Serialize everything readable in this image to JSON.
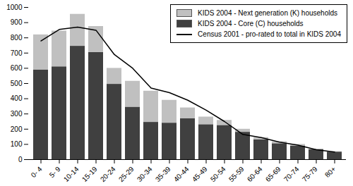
{
  "chart_data": {
    "type": "bar",
    "stacked": true,
    "legend": "upper right",
    "grid": false,
    "categories": [
      "0- 4",
      "5- 9",
      "10-14",
      "15-19",
      "20-24",
      "25-29",
      "30-34",
      "35-39",
      "40-44",
      "45-49",
      "50-54",
      "55-59",
      "60-64",
      "65-69",
      "70-74",
      "75-79",
      "80+"
    ],
    "ylim": [
      0,
      1000
    ],
    "yticks": [
      0,
      100,
      200,
      300,
      400,
      500,
      600,
      700,
      800,
      900,
      1000
    ],
    "series": [
      {
        "name": "KIDS 2004 - Next generation (K) households",
        "type": "bar",
        "color": "#c0c0c0",
        "values": [
          230,
          235,
          210,
          170,
          105,
          170,
          205,
          150,
          70,
          50,
          33,
          20,
          15,
          13,
          10,
          5,
          2
        ]
      },
      {
        "name": "KIDS 2004 - Core (C) households",
        "type": "bar",
        "color": "#404040",
        "values": [
          590,
          610,
          745,
          705,
          495,
          345,
          245,
          240,
          270,
          230,
          225,
          180,
          130,
          105,
          90,
          65,
          50
        ]
      },
      {
        "name": "Census 2001 - pro-rated to total in KIDS 2004",
        "type": "line",
        "color": "#000000",
        "values": [
          780,
          855,
          870,
          850,
          690,
          600,
          470,
          440,
          390,
          325,
          250,
          165,
          145,
          115,
          95,
          65,
          50
        ]
      }
    ]
  }
}
